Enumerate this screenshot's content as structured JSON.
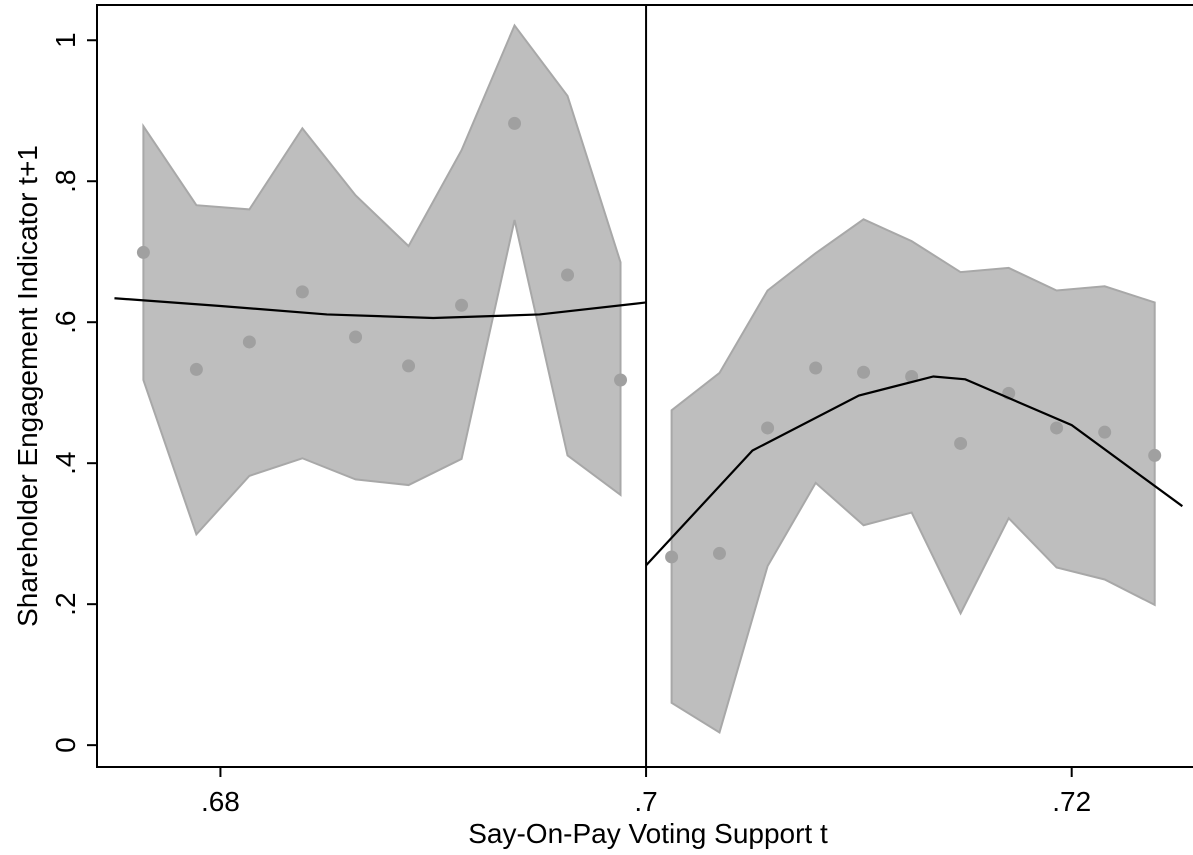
{
  "chart_data": {
    "type": "scatter",
    "xlabel": "Say-On-Pay Voting Support t",
    "ylabel": "Shareholder Engagement Indicator t+1",
    "xlim": [
      0.6742,
      0.7257
    ],
    "ylim": [
      -0.031,
      1.05
    ],
    "xticks": [
      {
        "value": 0.68,
        "label": ".68"
      },
      {
        "value": 0.7,
        "label": ".7"
      },
      {
        "value": 0.72,
        "label": ".72"
      }
    ],
    "yticks": [
      0,
      {
        "value": 0.2,
        "label": ".2"
      },
      {
        "value": 0.4,
        "label": ".4"
      },
      {
        "value": 0.6,
        "label": ".6"
      },
      {
        "value": 0.8,
        "label": ".8"
      },
      1
    ],
    "cutoff": 0.7,
    "point_color": "#a0a0a0",
    "band_color": "#bebebe",
    "fit_color": "#000000",
    "series": [
      {
        "x": [
          0.67638,
          0.67887,
          0.68136,
          0.68385,
          0.68635,
          0.68884,
          0.69133,
          0.69382,
          0.69631,
          0.6988
        ],
        "values": [
          0.699,
          0.533,
          0.572,
          0.643,
          0.579,
          0.538,
          0.624,
          0.882,
          0.667,
          0.518
        ],
        "ci_upper": [
          0.878,
          0.766,
          0.76,
          0.875,
          0.78,
          0.708,
          0.844,
          1.021,
          0.921,
          0.685
        ],
        "ci_lower": [
          0.518,
          0.299,
          0.382,
          0.407,
          0.377,
          0.369,
          0.406,
          0.745,
          0.411,
          0.355
        ],
        "fit_x": [
          0.67502,
          0.68,
          0.685,
          0.69,
          0.695,
          0.7
        ],
        "fit_y": [
          0.634,
          0.623,
          0.611,
          0.606,
          0.611,
          0.628
        ]
      },
      {
        "x": [
          0.7012,
          0.70345,
          0.70571,
          0.70797,
          0.71022,
          0.71248,
          0.71478,
          0.71704,
          0.71929,
          0.72155,
          0.7239
        ],
        "values": [
          0.267,
          0.272,
          0.45,
          0.535,
          0.529,
          0.523,
          0.428,
          0.499,
          0.45,
          0.444,
          0.411
        ],
        "ci_upper": [
          0.475,
          0.528,
          0.645,
          0.698,
          0.746,
          0.715,
          0.671,
          0.677,
          0.645,
          0.651,
          0.628
        ],
        "ci_lower": [
          0.06,
          0.018,
          0.254,
          0.372,
          0.312,
          0.33,
          0.187,
          0.322,
          0.252,
          0.235,
          0.199
        ],
        "fit_x": [
          0.7,
          0.705,
          0.71,
          0.7135,
          0.715,
          0.72,
          0.7252
        ],
        "fit_y": [
          0.255,
          0.418,
          0.496,
          0.523,
          0.519,
          0.454,
          0.339
        ]
      }
    ]
  }
}
